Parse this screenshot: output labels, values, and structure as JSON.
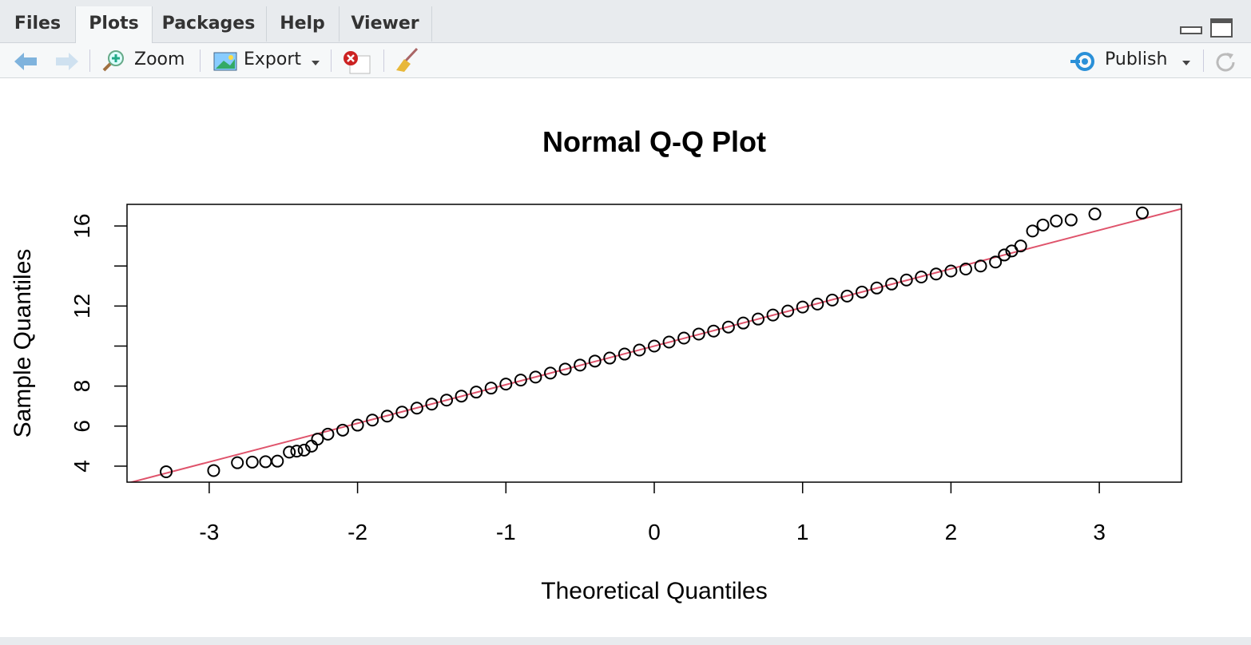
{
  "tabs": [
    "Files",
    "Plots",
    "Packages",
    "Help",
    "Viewer"
  ],
  "active_tab": 1,
  "toolbar": {
    "zoom": "Zoom",
    "export": "Export",
    "publish": "Publish"
  },
  "chart_data": {
    "type": "scatter",
    "title": "Normal Q-Q Plot",
    "x_label": "Theoretical Quantiles",
    "y_label": "Sample Quantiles",
    "xlim": [
      -3.554,
      3.554
    ],
    "ylim": [
      3.2,
      17.08
    ],
    "xticks": [
      -3,
      -2,
      -1,
      0,
      1,
      2,
      3
    ],
    "yticks": [
      4,
      6,
      8,
      {
        "value": 10,
        "label": null
      },
      12,
      {
        "value": 14,
        "label": null
      },
      16
    ],
    "color": "#000000",
    "reference_line": {
      "intercept": 10,
      "slope": 1.93,
      "color": "#df536b"
    },
    "x": [
      -3.29,
      -2.97,
      -2.81,
      -2.71,
      -2.62,
      -2.54,
      -2.46,
      -2.41,
      -2.36,
      -2.31,
      -2.27,
      -2.2,
      -2.1,
      -2.0,
      -1.9,
      -1.8,
      -1.7,
      -1.6,
      -1.5,
      -1.4,
      -1.3,
      -1.2,
      -1.1,
      -1.0,
      -0.9,
      -0.8,
      -0.7,
      -0.6,
      -0.5,
      -0.4,
      -0.3,
      -0.2,
      -0.1,
      0,
      0.1,
      0.2,
      0.3,
      0.4,
      0.5,
      0.6,
      0.7,
      0.8,
      0.9,
      1.0,
      1.1,
      1.2,
      1.3,
      1.4,
      1.5,
      1.6,
      1.7,
      1.8,
      1.9,
      2.0,
      2.1,
      2.2,
      2.3,
      2.36,
      2.41,
      2.47,
      2.55,
      2.62,
      2.71,
      2.81,
      2.97,
      3.29
    ],
    "values": [
      3.72,
      3.78,
      4.17,
      4.2,
      4.22,
      4.25,
      4.7,
      4.75,
      4.8,
      5.0,
      5.35,
      5.6,
      5.8,
      6.05,
      6.3,
      6.5,
      6.7,
      6.9,
      7.1,
      7.3,
      7.5,
      7.7,
      7.9,
      8.1,
      8.3,
      8.45,
      8.65,
      8.85,
      9.05,
      9.25,
      9.4,
      9.6,
      9.8,
      10.0,
      10.2,
      10.4,
      10.6,
      10.75,
      10.95,
      11.15,
      11.35,
      11.55,
      11.75,
      11.95,
      12.1,
      12.3,
      12.5,
      12.7,
      12.9,
      13.1,
      13.3,
      13.45,
      13.6,
      13.75,
      13.85,
      14.0,
      14.2,
      14.55,
      14.75,
      15.0,
      15.75,
      16.05,
      16.25,
      16.3,
      16.6,
      16.65
    ]
  }
}
